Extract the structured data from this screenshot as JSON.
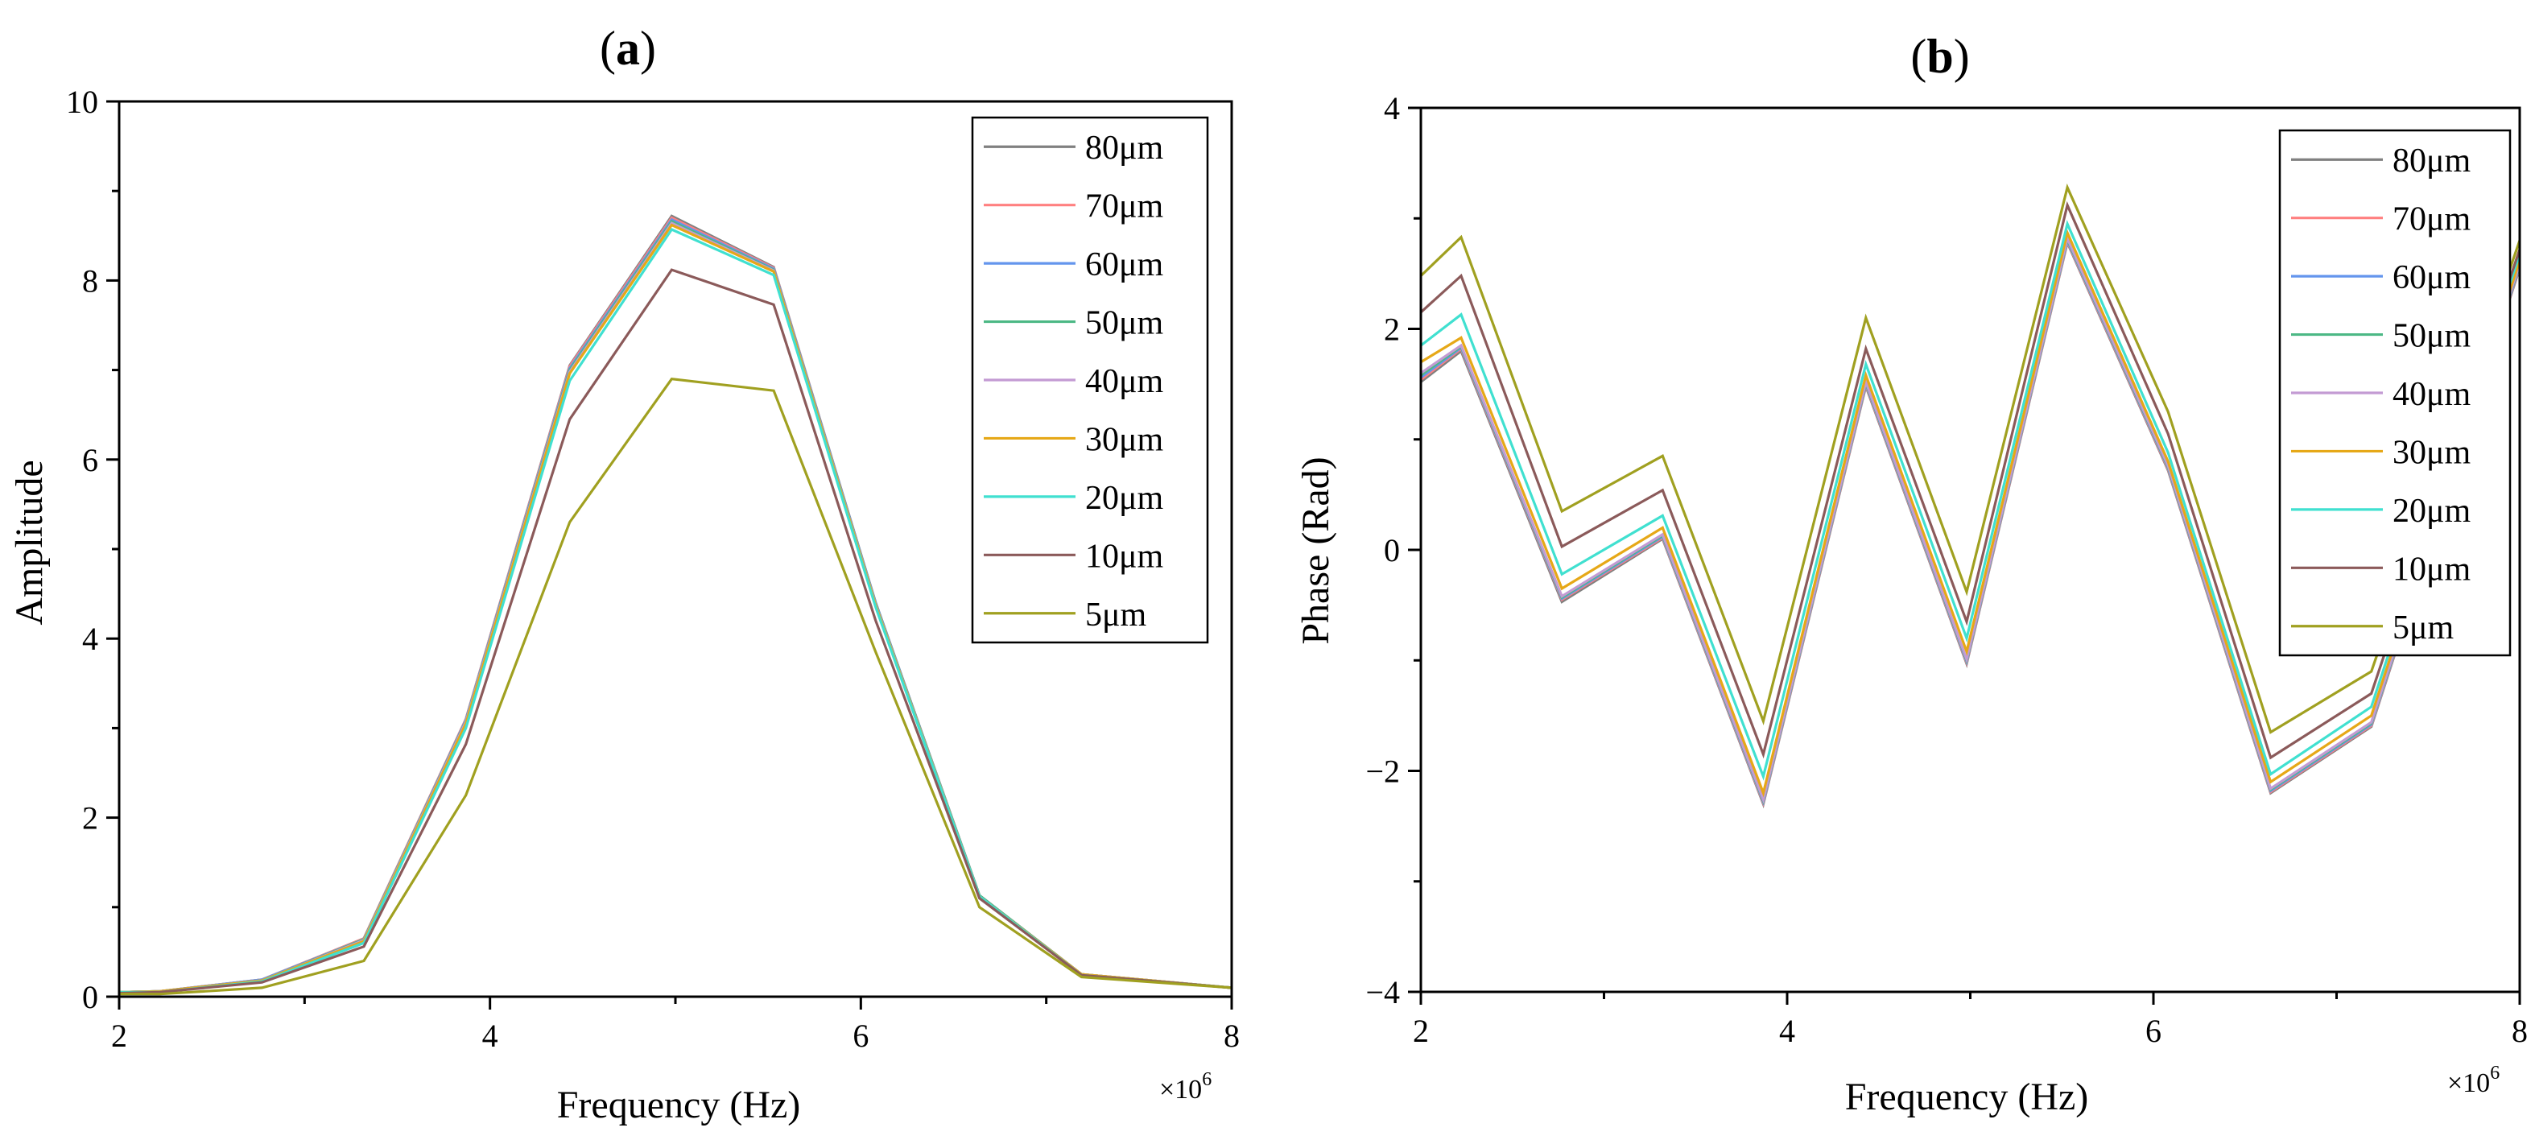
{
  "chart_data": [
    {
      "panel_label": "(a)",
      "panel_letter": "a",
      "type": "line",
      "xlabel": "Frequency (Hz)",
      "ylabel": "Amplitude",
      "x_multiplier": "×10",
      "x_multiplier_exp": "6",
      "xlim": [
        2,
        8
      ],
      "ylim": [
        0,
        10
      ],
      "x_ticks": [
        2,
        4,
        6,
        8
      ],
      "x_tick_labels": [
        "2",
        "4",
        "6",
        "8"
      ],
      "y_ticks": [
        0,
        2,
        4,
        6,
        8,
        10
      ],
      "y_tick_labels": [
        "0",
        "2",
        "4",
        "6",
        "8",
        "10"
      ],
      "legend_position": "top-right",
      "x": [
        2.0,
        2.22,
        2.77,
        3.32,
        3.87,
        4.43,
        4.98,
        5.53,
        6.08,
        6.64,
        7.19,
        8.0
      ],
      "series": [
        {
          "name": "80μm",
          "color": "#808080",
          "values": [
            0.05,
            0.06,
            0.19,
            0.65,
            3.1,
            7.05,
            8.72,
            8.15,
            4.4,
            1.13,
            0.25,
            0.1
          ]
        },
        {
          "name": "70μm",
          "color": "#ff8080",
          "values": [
            0.05,
            0.06,
            0.19,
            0.65,
            3.1,
            7.04,
            8.7,
            8.14,
            4.4,
            1.13,
            0.25,
            0.1
          ]
        },
        {
          "name": "60μm",
          "color": "#6495ed",
          "values": [
            0.05,
            0.06,
            0.19,
            0.64,
            3.09,
            7.02,
            8.68,
            8.13,
            4.4,
            1.13,
            0.25,
            0.1
          ]
        },
        {
          "name": "50μm",
          "color": "#4cb885",
          "values": [
            0.05,
            0.06,
            0.18,
            0.64,
            3.08,
            7.0,
            8.66,
            8.12,
            4.39,
            1.13,
            0.25,
            0.1
          ]
        },
        {
          "name": "40μm",
          "color": "#c39bd3",
          "values": [
            0.05,
            0.06,
            0.18,
            0.63,
            3.07,
            6.98,
            8.64,
            8.11,
            4.38,
            1.12,
            0.25,
            0.1
          ]
        },
        {
          "name": "30μm",
          "color": "#e6a817",
          "values": [
            0.05,
            0.06,
            0.18,
            0.62,
            3.05,
            6.96,
            8.62,
            8.1,
            4.37,
            1.12,
            0.25,
            0.1
          ]
        },
        {
          "name": "20μm",
          "color": "#40e0d0",
          "values": [
            0.05,
            0.05,
            0.17,
            0.6,
            3.0,
            6.88,
            8.57,
            8.06,
            4.35,
            1.12,
            0.24,
            0.1
          ]
        },
        {
          "name": "10μm",
          "color": "#8b5a5a",
          "values": [
            0.04,
            0.05,
            0.16,
            0.56,
            2.82,
            6.45,
            8.12,
            7.73,
            4.2,
            1.1,
            0.24,
            0.1
          ]
        },
        {
          "name": "5μm",
          "color": "#a0a020",
          "values": [
            0.03,
            0.03,
            0.1,
            0.4,
            2.25,
            5.3,
            6.9,
            6.77,
            3.85,
            1.0,
            0.22,
            0.1
          ]
        }
      ]
    },
    {
      "panel_label": "(b)",
      "panel_letter": "b",
      "type": "line",
      "xlabel": "Frequency (Hz)",
      "ylabel": "Phase (Rad)",
      "x_multiplier": "×10",
      "x_multiplier_exp": "6",
      "xlim": [
        2,
        8
      ],
      "ylim": [
        -4,
        4
      ],
      "x_ticks": [
        2,
        4,
        6,
        8
      ],
      "x_tick_labels": [
        "2",
        "4",
        "6",
        "8"
      ],
      "y_ticks": [
        -4,
        -2,
        0,
        2,
        4
      ],
      "y_tick_labels": [
        "−4",
        "−2",
        "0",
        "2",
        "4"
      ],
      "legend_position": "top-right",
      "x": [
        2.0,
        2.22,
        2.77,
        3.32,
        3.87,
        4.43,
        4.98,
        5.53,
        6.08,
        6.64,
        7.19,
        8.0
      ],
      "series": [
        {
          "name": "80μm",
          "color": "#808080",
          "values": [
            1.52,
            1.8,
            -0.47,
            0.1,
            -2.3,
            1.48,
            -1.03,
            2.78,
            0.72,
            -2.2,
            -1.6,
            2.55
          ]
        },
        {
          "name": "70μm",
          "color": "#ff8080",
          "values": [
            1.54,
            1.82,
            -0.45,
            0.11,
            -2.29,
            1.49,
            -1.02,
            2.79,
            0.73,
            -2.19,
            -1.59,
            2.56
          ]
        },
        {
          "name": "60μm",
          "color": "#6495ed",
          "values": [
            1.56,
            1.83,
            -0.44,
            0.12,
            -2.28,
            1.5,
            -1.01,
            2.8,
            0.74,
            -2.18,
            -1.58,
            2.57
          ]
        },
        {
          "name": "50μm",
          "color": "#4cb885",
          "values": [
            1.58,
            1.84,
            -0.43,
            0.13,
            -2.27,
            1.51,
            -1.0,
            2.81,
            0.75,
            -2.17,
            -1.57,
            2.58
          ]
        },
        {
          "name": "40μm",
          "color": "#c39bd3",
          "values": [
            1.6,
            1.85,
            -0.42,
            0.14,
            -2.26,
            1.52,
            -0.99,
            2.82,
            0.76,
            -2.16,
            -1.56,
            2.59
          ]
        },
        {
          "name": "30μm",
          "color": "#e6a817",
          "values": [
            1.7,
            1.92,
            -0.35,
            0.2,
            -2.2,
            1.58,
            -0.92,
            2.87,
            0.8,
            -2.1,
            -1.5,
            2.62
          ]
        },
        {
          "name": "20μm",
          "color": "#40e0d0",
          "values": [
            1.85,
            2.13,
            -0.22,
            0.31,
            -2.05,
            1.68,
            -0.8,
            2.95,
            0.88,
            -2.03,
            -1.42,
            2.68
          ]
        },
        {
          "name": "10μm",
          "color": "#8b5a5a",
          "values": [
            2.15,
            2.48,
            0.03,
            0.54,
            -1.85,
            1.82,
            -0.65,
            3.12,
            1.05,
            -1.88,
            -1.3,
            2.72
          ]
        },
        {
          "name": "5μm",
          "color": "#a0a020",
          "values": [
            2.48,
            2.83,
            0.35,
            0.85,
            -1.55,
            2.1,
            -0.38,
            3.28,
            1.25,
            -1.65,
            -1.1,
            2.8
          ]
        }
      ]
    }
  ]
}
